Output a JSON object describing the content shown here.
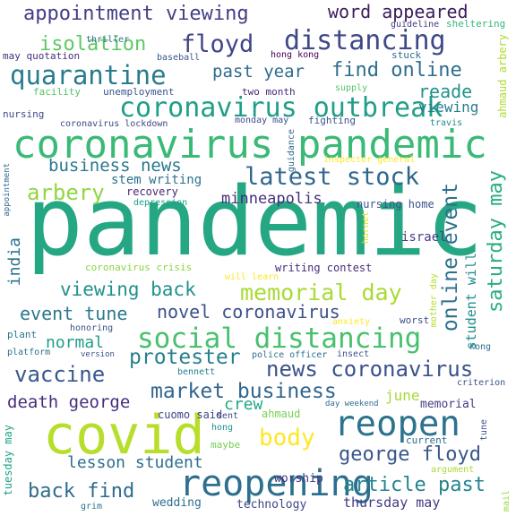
{
  "word_cloud": {
    "words": [
      {
        "text": "pandemic",
        "color": "#26a784"
      },
      {
        "text": "coronavirus pandemic",
        "color": "#3aba76"
      },
      {
        "text": "covid",
        "color": "#b6de2b"
      },
      {
        "text": "reopening",
        "color": "#2d6f8e"
      },
      {
        "text": "social distancing",
        "color": "#48c16e"
      },
      {
        "text": "coronavirus outbreak",
        "color": "#1f9f88"
      },
      {
        "text": "latest stock",
        "color": "#31678e"
      },
      {
        "text": "quarantine",
        "color": "#287c8e"
      },
      {
        "text": "distancing",
        "color": "#3e4989"
      },
      {
        "text": "reopen",
        "color": "#2c738e"
      },
      {
        "text": "appointment viewing",
        "color": "#433e85"
      },
      {
        "text": "memorial day",
        "color": "#a8db34"
      },
      {
        "text": "floyd",
        "color": "#414487"
      },
      {
        "text": "news coronavirus",
        "color": "#3b528b"
      },
      {
        "text": "market business",
        "color": "#32658e"
      },
      {
        "text": "vaccine",
        "color": "#38588c"
      },
      {
        "text": "body",
        "color": "#fde725"
      },
      {
        "text": "george floyd",
        "color": "#39568c"
      },
      {
        "text": "online event",
        "color": "#2d708e"
      },
      {
        "text": "protester",
        "color": "#27808e"
      },
      {
        "text": "article past",
        "color": "#25848e"
      },
      {
        "text": "arbery",
        "color": "#90d743"
      },
      {
        "text": "word appeared",
        "color": "#3b1c5a"
      },
      {
        "text": "business news",
        "color": "#2a788e"
      },
      {
        "text": "isolation",
        "color": "#5ec962"
      },
      {
        "text": "past year",
        "color": "#2f6b8e"
      },
      {
        "text": "find online",
        "color": "#2e6e8e"
      },
      {
        "text": "novel coronavirus",
        "color": "#3b528b"
      },
      {
        "text": "viewing back",
        "color": "#21918c"
      },
      {
        "text": "event tune",
        "color": "#2a788e"
      },
      {
        "text": "death george",
        "color": "#472d7b"
      },
      {
        "text": "back find",
        "color": "#2f6c8e"
      },
      {
        "text": "lesson student",
        "color": "#2e6f8e"
      },
      {
        "text": "saturday may",
        "color": "#27ad81"
      },
      {
        "text": "normal",
        "color": "#1f9e89"
      },
      {
        "text": "reade",
        "color": "#20928c"
      },
      {
        "text": "minneapolis",
        "color": "#46307e"
      },
      {
        "text": "india",
        "color": "#2c728e"
      },
      {
        "text": "crew",
        "color": "#22a884"
      },
      {
        "text": "thursday may",
        "color": "#443983"
      },
      {
        "text": "stem writing",
        "color": "#2c718e"
      },
      {
        "text": "student will",
        "color": "#228d8d"
      },
      {
        "text": "viewing",
        "color": "#287d8e"
      },
      {
        "text": "june",
        "color": "#a5db36"
      },
      {
        "text": "nursing home",
        "color": "#3b528b"
      },
      {
        "text": "ahmaud",
        "color": "#7ad151"
      },
      {
        "text": "israel",
        "color": "#424086"
      },
      {
        "text": "worship",
        "color": "#46337e"
      },
      {
        "text": "technology",
        "color": "#3f4788"
      },
      {
        "text": "wedding",
        "color": "#2e6e8e"
      },
      {
        "text": "memorial",
        "color": "#433d84"
      },
      {
        "text": "cuomo said",
        "color": "#404588"
      },
      {
        "text": "writing contest",
        "color": "#472f7d"
      },
      {
        "text": "recovery",
        "color": "#482475"
      },
      {
        "text": "two month",
        "color": "#482878"
      },
      {
        "text": "unemployment",
        "color": "#3a548c"
      },
      {
        "text": "facility",
        "color": "#52c569"
      },
      {
        "text": "may quotation",
        "color": "#46307e"
      },
      {
        "text": "baseball",
        "color": "#38598c"
      },
      {
        "text": "hong kong",
        "color": "#440154"
      },
      {
        "text": "stuck",
        "color": "#2e6d8e"
      },
      {
        "text": "guideline",
        "color": "#443a83"
      },
      {
        "text": "sheltering",
        "color": "#35b779"
      },
      {
        "text": "thriller",
        "color": "#2e6f8e"
      },
      {
        "text": "ahmaud arbery",
        "color": "#addc30"
      },
      {
        "text": "supply",
        "color": "#54c568"
      },
      {
        "text": "nursing",
        "color": "#3e4989"
      },
      {
        "text": "coronavirus lockdown",
        "color": "#3f4788"
      },
      {
        "text": "monday may",
        "color": "#3e4c8a"
      },
      {
        "text": "fighting",
        "color": "#3a548c"
      },
      {
        "text": "travis",
        "color": "#238a8d"
      },
      {
        "text": "guidance",
        "color": "#31688e"
      },
      {
        "text": "inspector general",
        "color": "#fde725"
      },
      {
        "text": "depression",
        "color": "#1fa088"
      },
      {
        "text": "appointment",
        "color": "#31688e"
      },
      {
        "text": "coronavirus crisis",
        "color": "#8bd646"
      },
      {
        "text": "will learn",
        "color": "#fde725"
      },
      {
        "text": "hornet",
        "color": "#d8e219"
      },
      {
        "text": "mother day",
        "color": "#b5de2b"
      },
      {
        "text": "anxiety",
        "color": "#fde725"
      },
      {
        "text": "worst",
        "color": "#3e4c8a"
      },
      {
        "text": "honoring",
        "color": "#3b528b"
      },
      {
        "text": "plant",
        "color": "#2a788e"
      },
      {
        "text": "platform",
        "color": "#2d718e"
      },
      {
        "text": "version",
        "color": "#3a538b"
      },
      {
        "text": "police officer",
        "color": "#2d708e"
      },
      {
        "text": "insect",
        "color": "#3b528b"
      },
      {
        "text": "kong",
        "color": "#2c718e"
      },
      {
        "text": "bennett",
        "color": "#277f8e"
      },
      {
        "text": "criterion",
        "color": "#3b528b"
      },
      {
        "text": "day weekend",
        "color": "#2e6e8e"
      },
      {
        "text": "sent",
        "color": "#3e4989"
      },
      {
        "text": "hong",
        "color": "#20928c"
      },
      {
        "text": "maybe",
        "color": "#75d054"
      },
      {
        "text": "tune",
        "color": "#3b528b"
      },
      {
        "text": "current",
        "color": "#2f6c8e"
      },
      {
        "text": "tuesday may",
        "color": "#20a386"
      },
      {
        "text": "argument",
        "color": "#a8db34"
      },
      {
        "text": "grim",
        "color": "#2a788e"
      },
      {
        "text": "mail",
        "color": "#98d83e"
      }
    ]
  }
}
